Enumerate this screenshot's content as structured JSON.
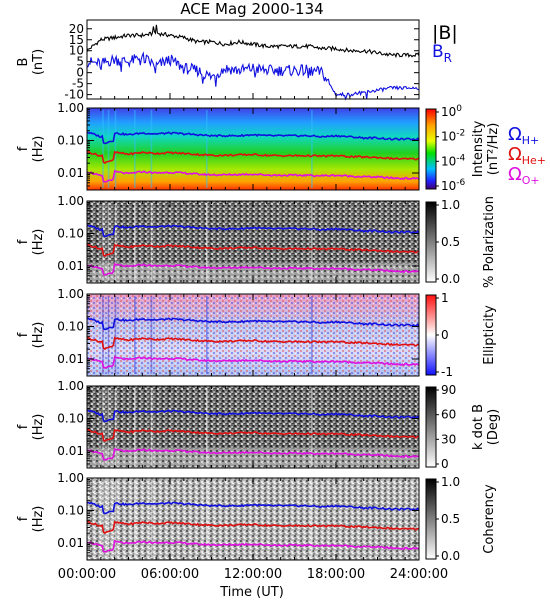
{
  "title": "ACE Mag 2000-134",
  "colors": {
    "bmag": "#000000",
    "br": "#1010e0",
    "h": "#1010e0",
    "he": "#e01010",
    "o": "#e010e0"
  },
  "panel_b": {
    "ylabel": "B",
    "yunit": "(nT)",
    "legend_bmag": "|B|",
    "legend_br_main": "B",
    "legend_br_sub": "R",
    "ticks": [
      "20",
      "15",
      "10",
      "5",
      "0",
      "-5",
      "-10"
    ]
  },
  "spectro_ylabel": "f",
  "spectro_yunit": "(Hz)",
  "freq_ticks": [
    "1.00",
    "0.10",
    "0.01"
  ],
  "gyro_legend": {
    "h_main": "Ω",
    "h_sub": "H+",
    "he_main": "Ω",
    "he_sub": "He+",
    "o_main": "Ω",
    "o_sub": "O+"
  },
  "panels": [
    {
      "colorbar_label": "Intensity",
      "colorbar_unit": "(nT²/Hz)",
      "colorbar_ticks": [
        "10",
        "10",
        "10",
        "10"
      ],
      "colorbar_exps": [
        "0",
        "-2",
        "-4",
        "-6"
      ]
    },
    {
      "colorbar_label": "% Polarization",
      "colorbar_ticks": [
        "1.0",
        "0.5",
        "0.0"
      ]
    },
    {
      "colorbar_label": "Ellipticity",
      "colorbar_ticks": [
        "1",
        "0",
        "-1"
      ]
    },
    {
      "colorbar_label": "k dot B",
      "colorbar_unit": "(Deg)",
      "colorbar_ticks": [
        "90",
        "60",
        "30",
        "0"
      ]
    },
    {
      "colorbar_label": "Coherency",
      "colorbar_ticks": [
        "1.0",
        "0.5",
        "0.0"
      ]
    }
  ],
  "x_ticks": [
    "00:00:00",
    "06:00:00",
    "12:00:00",
    "18:00:00",
    "24:00:00"
  ],
  "xlabel": "Time (UT)",
  "chart_data": [
    {
      "type": "line",
      "panel": "magnetic field",
      "x_hours": [
        0,
        1,
        2,
        3,
        4,
        5,
        6,
        7,
        8,
        9,
        10,
        11,
        12,
        13,
        14,
        15,
        16,
        17,
        18,
        19,
        20,
        21,
        22,
        23,
        24
      ],
      "series": [
        {
          "name": "|B|",
          "values": [
            10,
            15,
            16,
            17,
            17,
            18,
            17,
            16,
            14,
            14,
            13,
            14,
            13,
            12,
            12,
            12,
            12,
            11,
            11,
            10,
            10,
            9,
            8,
            8,
            8
          ]
        },
        {
          "name": "BR",
          "values": [
            5,
            4,
            6,
            5,
            7,
            3,
            6,
            2,
            1,
            -2,
            2,
            1,
            2,
            1,
            1,
            1,
            1,
            0,
            -10,
            -10,
            -9,
            -8,
            -7,
            -7,
            -7
          ]
        }
      ],
      "ylim": [
        -12,
        24
      ]
    },
    {
      "type": "heatmap",
      "panel": "spectrograms",
      "x_hours": [
        0,
        1,
        2,
        3,
        4,
        5,
        6,
        7,
        8,
        9,
        10,
        11,
        12,
        13,
        14,
        15,
        16,
        17,
        18,
        19,
        20,
        21,
        22,
        23,
        24
      ],
      "ylim_hz": [
        0.003,
        1.0
      ],
      "y_scale": "log",
      "series": [
        {
          "name": "H+",
          "values": [
            0.18,
            0.13,
            0.17,
            0.15,
            0.17,
            0.16,
            0.17,
            0.16,
            0.15,
            0.14,
            0.14,
            0.14,
            0.15,
            0.14,
            0.14,
            0.14,
            0.14,
            0.13,
            0.14,
            0.13,
            0.12,
            0.12,
            0.11,
            0.11,
            0.11
          ]
        },
        {
          "name": "He+",
          "values": [
            0.045,
            0.033,
            0.043,
            0.038,
            0.043,
            0.04,
            0.042,
            0.04,
            0.037,
            0.035,
            0.035,
            0.036,
            0.037,
            0.035,
            0.034,
            0.034,
            0.034,
            0.033,
            0.034,
            0.032,
            0.031,
            0.03,
            0.028,
            0.027,
            0.027
          ]
        },
        {
          "name": "O+",
          "values": [
            0.011,
            0.008,
            0.011,
            0.0095,
            0.011,
            0.01,
            0.0105,
            0.01,
            0.0092,
            0.0088,
            0.0088,
            0.009,
            0.0092,
            0.0087,
            0.0085,
            0.0085,
            0.0085,
            0.0082,
            0.0085,
            0.008,
            0.0077,
            0.0075,
            0.007,
            0.0068,
            0.0068
          ]
        }
      ]
    }
  ]
}
